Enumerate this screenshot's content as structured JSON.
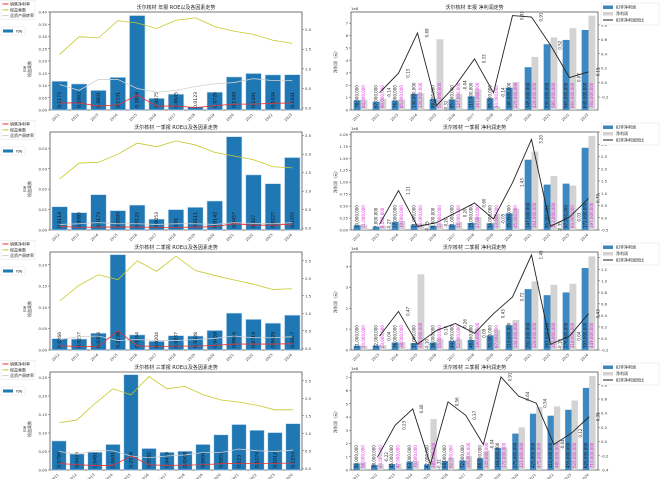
{
  "legend_left": {
    "net_margin": "销售净利率",
    "equity_multiplier": "权益乘数",
    "asset_turnover": "总资产周转率",
    "roe": "roe"
  },
  "legend_right": {
    "deducted": "扣非净利润",
    "net": "净利润",
    "yoy": "扣非净利润同比"
  },
  "axis_labels": {
    "roe": "roe",
    "multiplier": "权益乘数",
    "profit": "净利润（元）",
    "offset": "1e8"
  },
  "colors": {
    "roe": "#1f77b4",
    "net_margin": "#e8312f",
    "equity_multiplier": "#c8c82a",
    "asset_turnover": "#d0d0d0",
    "deducted": "#3d88c0",
    "net": "#d3d3d3",
    "yoy": "#222222"
  },
  "chart_data": [
    {
      "type": "bar+line",
      "title": "沃尔核材  年报 ROE以及各因素走势",
      "categories": [
        "2011",
        "2012",
        "2013",
        "2014",
        "2015",
        "2016",
        "2017",
        "2018",
        "2019",
        "2020",
        "2021",
        "2022",
        "2023"
      ],
      "roe": [
        0.1173,
        0.1063,
        0.0801,
        0.1331,
        0.3856,
        0.0475,
        0.0645,
        0.0123,
        0.0726,
        0.1349,
        0.1491,
        0.1434,
        0.1441
      ],
      "net_margin": [
        0.13,
        0.13,
        0.05,
        0.08,
        0.33,
        0.05,
        0.05,
        0.01,
        0.06,
        0.1,
        0.1,
        0.12,
        0.13
      ],
      "equity_multiplier": [
        1.37,
        1.82,
        1.79,
        2.23,
        2.17,
        2.03,
        2.24,
        2.3,
        2.08,
        1.96,
        1.88,
        1.73,
        1.65
      ],
      "asset_turnover": [
        0.6,
        0.45,
        0.73,
        0.73,
        0.5,
        0.4,
        0.45,
        0.55,
        0.62,
        0.65,
        0.75,
        0.7,
        0.7
      ],
      "ylim": [
        0,
        0.4
      ],
      "ystep": 0.05,
      "y2lim": [
        -0.05,
        2.45
      ],
      "y2step": 0.5
    },
    {
      "type": "bar+line",
      "title": "沃尔核材 年报 净利润走势",
      "categories": [
        "2011",
        "2012",
        "2013",
        "2014",
        "2015",
        "2016",
        "2017",
        "2018",
        "2019",
        "2020",
        "2021",
        "2022",
        "2023"
      ],
      "deducted": [
        0.78,
        0.67,
        0.76,
        1.3,
        0.88,
        0.85,
        1.1,
        0.95,
        1.8,
        3.45,
        5.3,
        5.65,
        6.45
      ],
      "net": [
        0.84,
        0.9,
        0.85,
        1.35,
        5.7,
        1.27,
        1.67,
        0.3,
        2.25,
        4.28,
        5.85,
        6.6,
        7.6
      ],
      "yoy": [
        null,
        -0.14,
        0.13,
        0.69,
        -0.32,
        -0.04,
        0.33,
        -0.14,
        0.93,
        0.91,
        0.52,
        0.07,
        0.15
      ],
      "ylim": [
        0,
        7.9
      ],
      "ystep": 1,
      "y2lim": [
        -0.38,
        0.98
      ],
      "y2step": 0.2
    },
    {
      "type": "bar+line",
      "title": "沃尔核材  一季报 ROE以及各因素走势",
      "categories": [
        "2012",
        "2013",
        "2014",
        "2015",
        "2016",
        "2017",
        "2018",
        "2019",
        "2020",
        "2021",
        "2022",
        "2023",
        "2024"
      ],
      "roe": [
        0.0114,
        0.0085,
        0.0173,
        0.0095,
        0.0122,
        0.0053,
        0.01,
        0.0111,
        0.0142,
        0.0457,
        0.027,
        0.0227,
        0.0355
      ],
      "net_margin": [
        0.05,
        0.02,
        0.03,
        0.03,
        0.03,
        0.02,
        0.02,
        0.03,
        0.04,
        0.12,
        0.08,
        0.08,
        0.11
      ],
      "equity_multiplier": [
        1.33,
        1.76,
        1.78,
        2.0,
        2.3,
        2.2,
        2.36,
        2.25,
        2.05,
        1.95,
        1.85,
        1.66,
        1.63
      ],
      "asset_turnover": [
        0.1,
        0.12,
        0.15,
        0.12,
        0.12,
        0.1,
        0.12,
        0.12,
        0.1,
        0.15,
        0.13,
        0.12,
        0.15
      ],
      "ylim": [
        0,
        0.048
      ],
      "ystep": 0.01,
      "y2lim": [
        -0.05,
        2.6
      ],
      "y2step": 0.5
    },
    {
      "type": "bar+line",
      "title": "沃尔核材 一季报 净利润走势",
      "categories": [
        "2012",
        "2013",
        "2014",
        "2015",
        "2016",
        "2017",
        "2018",
        "2019",
        "2020",
        "2021",
        "2022",
        "2023",
        "2024"
      ],
      "deducted": [
        0.1,
        0.07,
        0.17,
        0.11,
        0.09,
        0.11,
        0.15,
        0.14,
        0.35,
        1.47,
        0.95,
        0.97,
        1.72
      ],
      "net": [
        0.11,
        0.09,
        0.19,
        0.13,
        0.13,
        0.16,
        0.27,
        0.33,
        0.45,
        1.64,
        1.13,
        0.93,
        1.97
      ],
      "yoy": [
        null,
        -0.27,
        1.11,
        -0.35,
        -0.2,
        0.2,
        0.6,
        -0.05,
        1.43,
        3.2,
        -0.35,
        0.03,
        0.79
      ],
      "ylim": [
        0,
        2.05
      ],
      "ystep": 0.25,
      "y2lim": [
        -0.5,
        3.5
      ],
      "y2step": 0.5
    },
    {
      "type": "bar+line",
      "title": "沃尔核材  二季报 ROE以及各因素走势",
      "categories": [
        "2012",
        "2013",
        "2014",
        "2015",
        "2016",
        "2017",
        "2018",
        "2019",
        "2020",
        "2021",
        "2022",
        "2023",
        "2024"
      ],
      "roe": [
        0.0266,
        0.0257,
        0.0393,
        0.2238,
        0.0354,
        0.0204,
        0.0337,
        0.0328,
        0.0459,
        0.0866,
        0.0719,
        0.0629,
        0.0817
      ],
      "net_margin": [
        0.07,
        0.05,
        0.05,
        0.5,
        0.07,
        0.05,
        0.06,
        0.06,
        0.08,
        0.12,
        0.12,
        0.12,
        0.13
      ],
      "equity_multiplier": [
        1.35,
        1.8,
        2.1,
        1.96,
        2.5,
        2.2,
        2.63,
        2.22,
        2.08,
        1.95,
        1.83,
        1.68,
        1.7
      ],
      "asset_turnover": [
        0.25,
        0.33,
        0.35,
        0.22,
        0.25,
        0.22,
        0.22,
        0.25,
        0.28,
        0.35,
        0.3,
        0.3,
        0.33
      ],
      "ylim": [
        0,
        0.23
      ],
      "ystep": 0.05,
      "y2lim": [
        -0.05,
        2.75
      ],
      "y2step": 0.5
    },
    {
      "type": "bar+line",
      "title": "沃尔核材 二季报 净利润走势",
      "categories": [
        "2012",
        "2013",
        "2014",
        "2015",
        "2016",
        "2017",
        "2018",
        "2019",
        "2020",
        "2021",
        "2022",
        "2023",
        "2024"
      ],
      "deducted": [
        0.21,
        0.22,
        0.36,
        0.33,
        0.36,
        0.44,
        0.48,
        0.7,
        1.19,
        2.92,
        2.63,
        2.76,
        3.93
      ],
      "net": [
        0.2,
        0.23,
        0.38,
        3.63,
        0.55,
        0.52,
        1.0,
        0.97,
        1.44,
        3.29,
        3.13,
        3.18,
        4.49
      ],
      "yoy": [
        null,
        0.04,
        0.47,
        -0.1,
        0.14,
        0.26,
        0.09,
        0.43,
        0.72,
        1.45,
        -0.1,
        0.04,
        0.43
      ],
      "ylim": [
        0,
        4.7
      ],
      "ystep": 1,
      "y2lim": [
        -0.2,
        1.5
      ],
      "y2step": 0.2
    },
    {
      "type": "bar+line",
      "title": "沃尔核材  三季报 ROE以及各因素走势",
      "categories": [
        "2011",
        "2012",
        "2013",
        "2014",
        "2015",
        "2016",
        "2017",
        "2018",
        "2019",
        "2020",
        "2021",
        "2022",
        "2023",
        "2024"
      ],
      "roe": [
        0.0786,
        0.0433,
        0.0481,
        0.0691,
        0.2578,
        0.0582,
        0.0479,
        0.0508,
        0.0691,
        0.0952,
        0.123,
        0.1074,
        0.1012,
        0.1253
      ],
      "net_margin": [
        0.14,
        0.1,
        0.08,
        0.08,
        0.35,
        0.1,
        0.08,
        0.09,
        0.1,
        0.13,
        0.14,
        0.14,
        0.14,
        0.15
      ],
      "equity_multiplier": [
        1.3,
        1.38,
        1.85,
        2.27,
        2.1,
        2.62,
        2.27,
        2.34,
        2.1,
        1.95,
        1.89,
        1.8,
        1.67,
        1.67
      ],
      "asset_turnover": [
        0.48,
        0.4,
        0.5,
        0.5,
        0.35,
        0.3,
        0.35,
        0.38,
        0.45,
        0.45,
        0.55,
        0.5,
        0.48,
        0.52
      ],
      "ylim": [
        0,
        0.265
      ],
      "ystep": 0.05,
      "y2lim": [
        -0.05,
        2.75
      ],
      "y2step": 0.5
    },
    {
      "type": "bar+line",
      "title": "沃尔核材 三季报 净利润走势",
      "categories": [
        "2011",
        "2012",
        "2013",
        "2014",
        "2015",
        "2016",
        "2017",
        "2018",
        "2019",
        "2020",
        "2021",
        "2022",
        "2023",
        "2024"
      ],
      "deducted": [
        0.5,
        0.38,
        0.45,
        0.63,
        0.42,
        0.68,
        0.72,
        0.88,
        1.68,
        2.75,
        4.25,
        4.1,
        4.55,
        6.2
      ],
      "net": [
        0.58,
        0.44,
        0.47,
        0.7,
        3.85,
        0.92,
        1.05,
        1.45,
        1.72,
        3.22,
        4.75,
        4.8,
        5.25,
        7.1
      ],
      "yoy": [
        null,
        -0.22,
        0.23,
        0.46,
        -0.32,
        0.56,
        0.37,
        -0.04,
        0.91,
        0.64,
        0.54,
        -0.04,
        0.12,
        0.35
      ],
      "ylim": [
        0,
        7.4
      ],
      "ystep": 1,
      "y2lim": [
        -0.4,
        0.98
      ],
      "y2step": 0.2
    }
  ]
}
